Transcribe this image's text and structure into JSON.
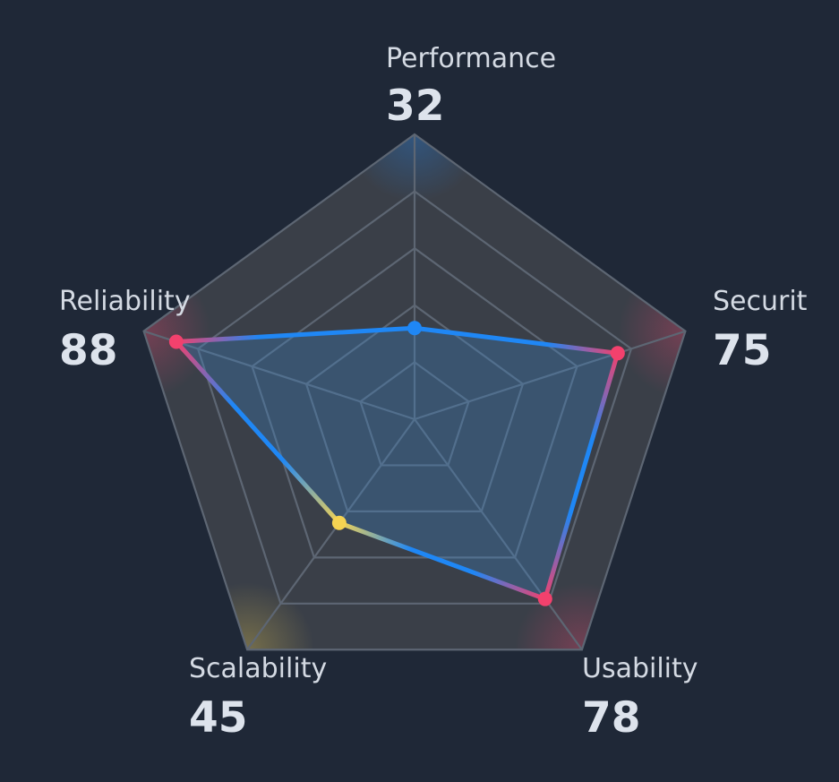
{
  "chart_data": {
    "type": "radar",
    "title": "",
    "rlim": [
      0,
      100
    ],
    "rings": 5,
    "grid": true,
    "axes": [
      {
        "label": "Performance",
        "value": 32,
        "color": "#1f87f5"
      },
      {
        "label": "Security",
        "value": 75,
        "color": "#f2416d"
      },
      {
        "label": "Usability",
        "value": 78,
        "color": "#f2416d"
      },
      {
        "label": "Scalability",
        "value": 45,
        "color": "#f5d352"
      },
      {
        "label": "Reliability",
        "value": 88,
        "color": "#f2416d"
      }
    ],
    "series_line_color": "#1f87f5",
    "fill_color": "#3b82c4"
  },
  "colors": {
    "background": "#1f2837",
    "panel": "#3a3f48",
    "grid": "#5d6673",
    "label": "#d4dae3",
    "value": "#dde3ec"
  }
}
